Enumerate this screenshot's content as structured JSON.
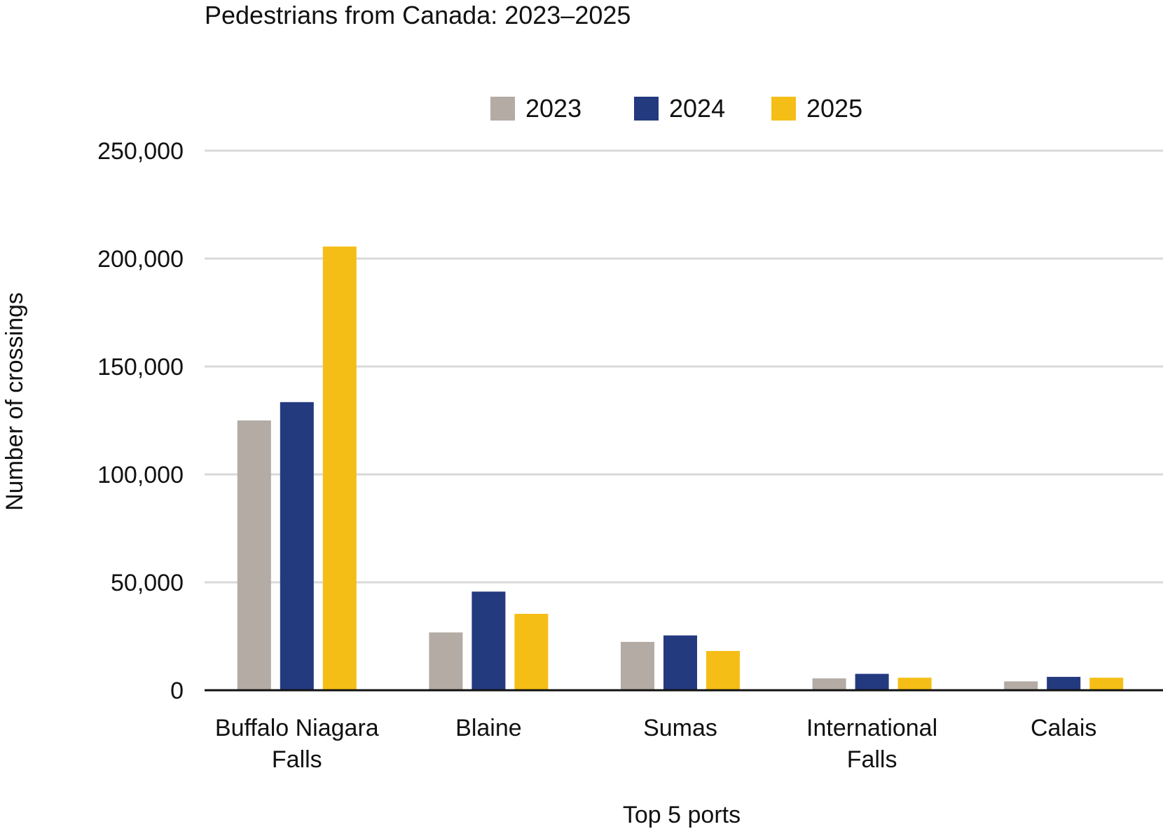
{
  "chart_data": {
    "type": "bar",
    "title": "Pedestrians from Canada: 2023–2025",
    "xlabel": "Top 5 ports",
    "ylabel": "Number of crossings",
    "ylim": [
      0,
      250000
    ],
    "yticks": [
      0,
      50000,
      100000,
      150000,
      200000,
      250000
    ],
    "ytick_labels": [
      "0",
      "50,000",
      "100,000",
      "150,000",
      "200,000",
      "250,000"
    ],
    "grid": true,
    "legend_position": "top",
    "categories": [
      [
        "Buffalo Niagara",
        "Falls"
      ],
      [
        "Blaine"
      ],
      [
        "Sumas"
      ],
      [
        "International",
        "Falls"
      ],
      [
        "Calais"
      ]
    ],
    "series": [
      {
        "name": "2023",
        "color": "#b3aba4",
        "values": [
          125000,
          26800,
          22400,
          5500,
          4100
        ]
      },
      {
        "name": "2024",
        "color": "#243a7f",
        "values": [
          133500,
          45700,
          25400,
          7600,
          6200
        ]
      },
      {
        "name": "2025",
        "color": "#f5be17",
        "values": [
          205600,
          35400,
          18200,
          5800,
          5800
        ]
      }
    ]
  }
}
